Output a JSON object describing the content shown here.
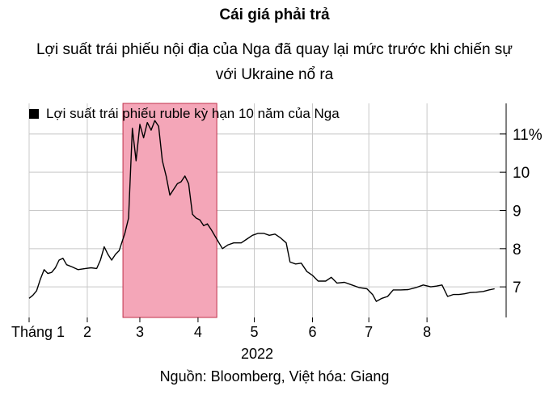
{
  "title": "Cái giá phải trả",
  "subtitle_line1": "Lợi suất trái phiếu nội địa của Nga đã quay lại mức trước khi chiến sự",
  "subtitle_line2": "với Ukraine nổ ra",
  "source": "Nguồn: Bloomberg, Việt hóa: Giang",
  "colors": {
    "line": "#000000",
    "highlight": "#f4a6b8",
    "highlight_edge": "#c0304a",
    "grid": "#c8c8c8"
  },
  "chart_data": {
    "type": "line",
    "series": [
      {
        "name": "Lợi suất trái phiếu ruble kỳ hạn 10 năm của Nga",
        "points": [
          [
            "2022-01-01",
            6.7
          ],
          [
            "2022-01-03",
            6.78
          ],
          [
            "2022-01-05",
            6.9
          ],
          [
            "2022-01-07",
            7.2
          ],
          [
            "2022-01-09",
            7.45
          ],
          [
            "2022-01-11",
            7.35
          ],
          [
            "2022-01-13",
            7.38
          ],
          [
            "2022-01-15",
            7.5
          ],
          [
            "2022-01-17",
            7.7
          ],
          [
            "2022-01-19",
            7.75
          ],
          [
            "2022-01-21",
            7.58
          ],
          [
            "2022-01-24",
            7.52
          ],
          [
            "2022-01-27",
            7.45
          ],
          [
            "2022-01-31",
            7.48
          ],
          [
            "2022-02-03",
            7.5
          ],
          [
            "2022-02-06",
            7.48
          ],
          [
            "2022-02-08",
            7.7
          ],
          [
            "2022-02-10",
            8.05
          ],
          [
            "2022-02-12",
            7.85
          ],
          [
            "2022-02-14",
            7.7
          ],
          [
            "2022-02-16",
            7.85
          ],
          [
            "2022-02-18",
            7.95
          ],
          [
            "2022-02-21",
            8.4
          ],
          [
            "2022-02-23",
            8.8
          ],
          [
            "2022-02-25",
            11.15
          ],
          [
            "2022-02-27",
            10.3
          ],
          [
            "2022-03-01",
            11.25
          ],
          [
            "2022-03-03",
            10.9
          ],
          [
            "2022-03-05",
            11.3
          ],
          [
            "2022-03-07",
            11.1
          ],
          [
            "2022-03-09",
            11.35
          ],
          [
            "2022-03-11",
            11.2
          ],
          [
            "2022-03-13",
            10.3
          ],
          [
            "2022-03-15",
            9.9
          ],
          [
            "2022-03-17",
            9.4
          ],
          [
            "2022-03-19",
            9.55
          ],
          [
            "2022-03-21",
            9.7
          ],
          [
            "2022-03-23",
            9.75
          ],
          [
            "2022-03-25",
            9.9
          ],
          [
            "2022-03-27",
            9.7
          ],
          [
            "2022-03-29",
            8.9
          ],
          [
            "2022-03-31",
            8.8
          ],
          [
            "2022-04-02",
            8.75
          ],
          [
            "2022-04-04",
            8.6
          ],
          [
            "2022-04-06",
            8.65
          ],
          [
            "2022-04-08",
            8.5
          ],
          [
            "2022-04-11",
            8.25
          ],
          [
            "2022-04-14",
            8.0
          ],
          [
            "2022-04-17",
            8.1
          ],
          [
            "2022-04-20",
            8.15
          ],
          [
            "2022-04-24",
            8.15
          ],
          [
            "2022-04-27",
            8.25
          ],
          [
            "2022-04-30",
            8.35
          ],
          [
            "2022-05-03",
            8.4
          ],
          [
            "2022-05-06",
            8.4
          ],
          [
            "2022-05-09",
            8.35
          ],
          [
            "2022-05-12",
            8.38
          ],
          [
            "2022-05-15",
            8.28
          ],
          [
            "2022-05-18",
            8.15
          ],
          [
            "2022-05-20",
            7.65
          ],
          [
            "2022-05-23",
            7.6
          ],
          [
            "2022-05-26",
            7.62
          ],
          [
            "2022-05-29",
            7.4
          ],
          [
            "2022-06-01",
            7.3
          ],
          [
            "2022-06-04",
            7.15
          ],
          [
            "2022-06-08",
            7.15
          ],
          [
            "2022-06-11",
            7.25
          ],
          [
            "2022-06-14",
            7.1
          ],
          [
            "2022-06-18",
            7.12
          ],
          [
            "2022-06-22",
            7.05
          ],
          [
            "2022-06-26",
            6.98
          ],
          [
            "2022-06-30",
            6.95
          ],
          [
            "2022-07-03",
            6.8
          ],
          [
            "2022-07-05",
            6.62
          ],
          [
            "2022-07-08",
            6.7
          ],
          [
            "2022-07-11",
            6.75
          ],
          [
            "2022-07-14",
            6.92
          ],
          [
            "2022-07-18",
            6.92
          ],
          [
            "2022-07-22",
            6.93
          ],
          [
            "2022-07-26",
            6.98
          ],
          [
            "2022-07-30",
            7.05
          ],
          [
            "2022-08-03",
            7.0
          ],
          [
            "2022-08-06",
            7.02
          ],
          [
            "2022-08-09",
            7.05
          ],
          [
            "2022-08-12",
            6.75
          ],
          [
            "2022-08-15",
            6.8
          ],
          [
            "2022-08-18",
            6.8
          ],
          [
            "2022-08-21",
            6.82
          ],
          [
            "2022-08-24",
            6.85
          ],
          [
            "2022-08-27",
            6.86
          ],
          [
            "2022-08-31",
            6.88
          ],
          [
            "2022-09-03",
            6.92
          ],
          [
            "2022-09-06",
            6.95
          ]
        ]
      }
    ],
    "highlight": {
      "start": "2022-02-20",
      "end": "2022-04-11"
    },
    "x_axis": {
      "range": [
        "2022-01-01",
        "2022-09-07"
      ],
      "ticks": [
        {
          "date": "2022-01-01",
          "label": "Tháng 1"
        },
        {
          "date": "2022-02-01",
          "label": "2"
        },
        {
          "date": "2022-03-01",
          "label": "3"
        },
        {
          "date": "2022-04-01",
          "label": "4"
        },
        {
          "date": "2022-05-01",
          "label": "5"
        },
        {
          "date": "2022-06-01",
          "label": "6"
        },
        {
          "date": "2022-07-01",
          "label": "7"
        },
        {
          "date": "2022-08-01",
          "label": "8"
        }
      ],
      "year_label": "2022"
    },
    "y_axis": {
      "range": [
        6.2,
        11.8
      ],
      "position": "right",
      "ticks": [
        {
          "value": 7,
          "label": "7"
        },
        {
          "value": 8,
          "label": "8"
        },
        {
          "value": 9,
          "label": "9"
        },
        {
          "value": 10,
          "label": "10"
        },
        {
          "value": 11,
          "label": "11%"
        }
      ]
    },
    "grid": true,
    "legend": "top-left"
  }
}
